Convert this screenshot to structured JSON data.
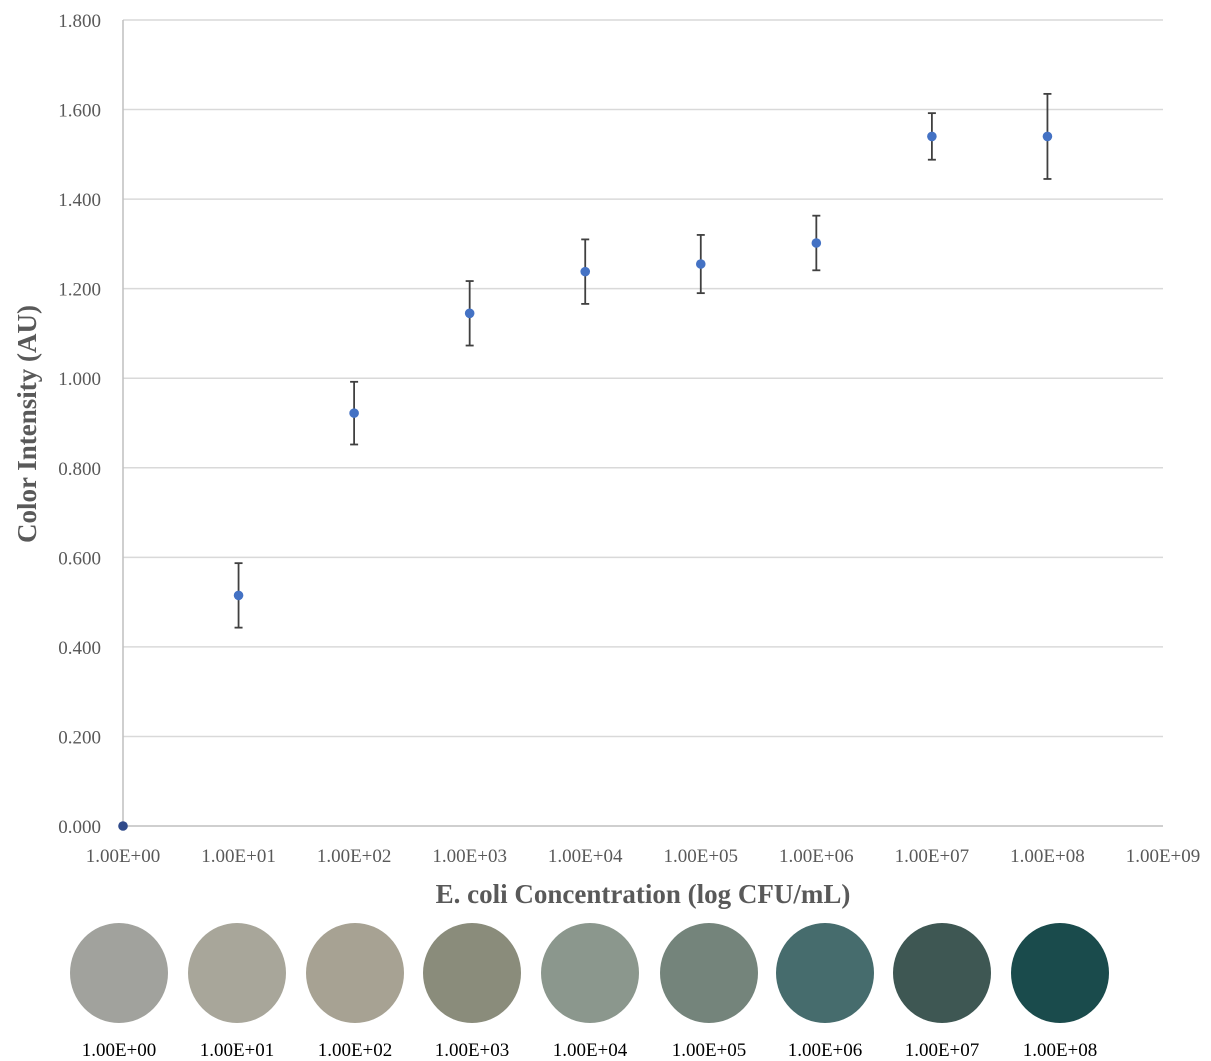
{
  "chart_data": {
    "type": "scatter",
    "xlabel": "E. coli Concentration (log CFU/mL)",
    "ylabel": "Color Intensity (AU)",
    "x_scale": "log",
    "xlim": [
      1,
      1000000000
    ],
    "ylim": [
      0,
      1.8
    ],
    "grid": "horizontal",
    "x_ticks": [
      "1.00E+00",
      "1.00E+01",
      "1.00E+02",
      "1.00E+03",
      "1.00E+04",
      "1.00E+05",
      "1.00E+06",
      "1.00E+07",
      "1.00E+08",
      "1.00E+09"
    ],
    "y_ticks": [
      "0.000",
      "0.200",
      "0.400",
      "0.600",
      "0.800",
      "1.000",
      "1.200",
      "1.400",
      "1.600",
      "1.800"
    ],
    "series": [
      {
        "x": [
          1,
          10,
          100,
          1000,
          10000,
          100000,
          1000000,
          10000000,
          100000000
        ],
        "y": [
          0.0,
          0.515,
          0.922,
          1.145,
          1.238,
          1.255,
          1.302,
          1.54,
          1.54
        ],
        "error": [
          0.0,
          0.072,
          0.07,
          0.072,
          0.072,
          0.065,
          0.061,
          0.052,
          0.095
        ],
        "color": "#4472C4"
      }
    ]
  },
  "swatches": [
    {
      "label": "1.00E+00",
      "color": "#a1a29d"
    },
    {
      "label": "1.00E+01",
      "color": "#a8a69a"
    },
    {
      "label": "1.00E+02",
      "color": "#a7a293"
    },
    {
      "label": "1.00E+03",
      "color": "#8a8c7b"
    },
    {
      "label": "1.00E+04",
      "color": "#8b978d"
    },
    {
      "label": "1.00E+05",
      "color": "#74847b"
    },
    {
      "label": "1.00E+06",
      "color": "#466c6d"
    },
    {
      "label": "1.00E+07",
      "color": "#3e5753"
    },
    {
      "label": "1.00E+08",
      "color": "#1a4b4c"
    }
  ],
  "colors": {
    "marker": "#4472C4",
    "first_marker": "#2f4a8a",
    "gridline": "#d9d9d9",
    "error_bar": "#404040",
    "axis_text": "#595959"
  }
}
